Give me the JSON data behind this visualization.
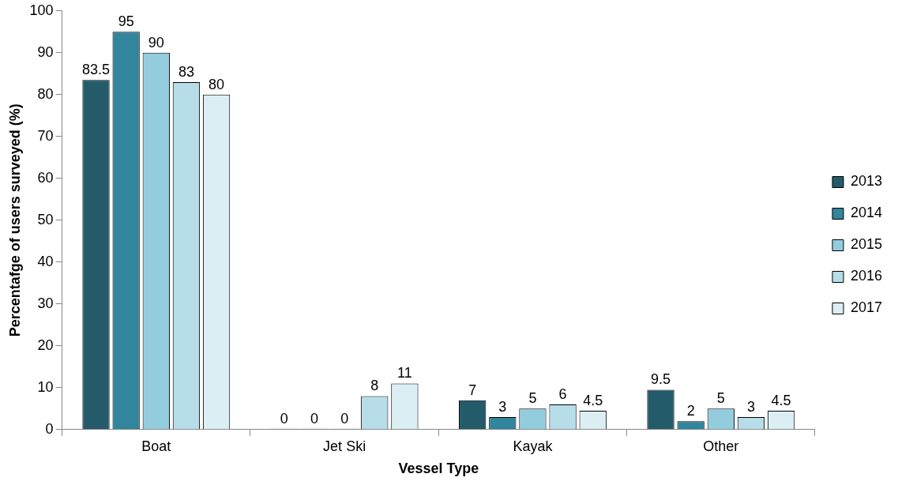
{
  "chart_data": {
    "type": "bar",
    "xlabel": "Vessel Type",
    "ylabel": "Percentafge of users surveyed (%)",
    "categories": [
      "Boat",
      "Jet Ski",
      "Kayak",
      "Other"
    ],
    "series": [
      {
        "name": "2013",
        "color": "#235b6a",
        "values": [
          83.5,
          0,
          7,
          9.5
        ]
      },
      {
        "name": "2014",
        "color": "#31859c",
        "values": [
          95,
          0,
          3,
          2
        ]
      },
      {
        "name": "2015",
        "color": "#93cddd",
        "values": [
          90,
          0,
          5,
          5
        ]
      },
      {
        "name": "2016",
        "color": "#b7dee8",
        "values": [
          83,
          8,
          6,
          3
        ]
      },
      {
        "name": "2017",
        "color": "#dbeef4",
        "values": [
          80,
          11,
          4.5,
          4.5
        ]
      }
    ],
    "ylim": [
      0,
      100
    ],
    "yticks": [
      0,
      10,
      20,
      30,
      40,
      50,
      60,
      70,
      80,
      90,
      100
    ],
    "grid": false,
    "legend": "right",
    "data_labels": true
  }
}
